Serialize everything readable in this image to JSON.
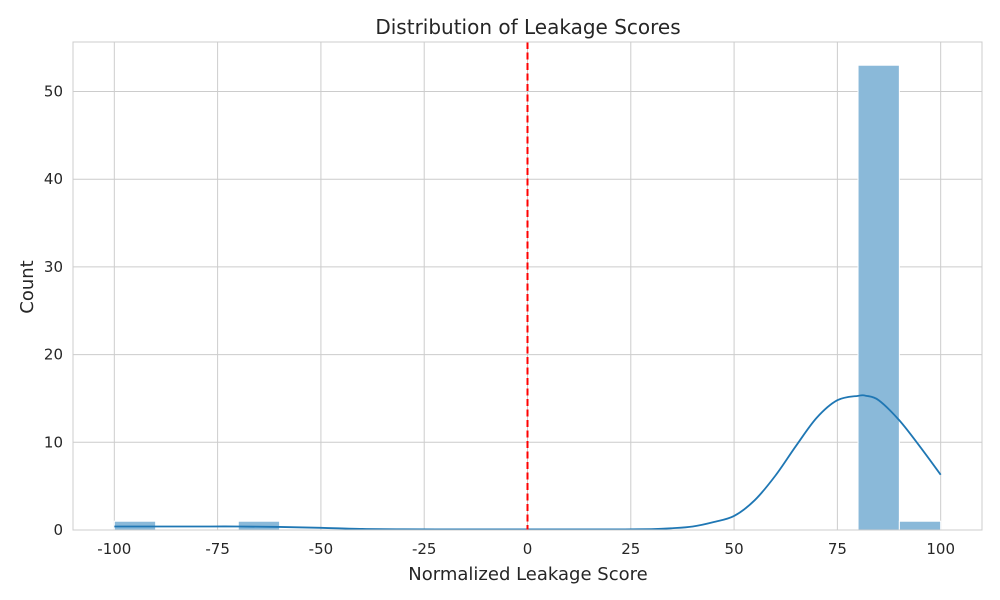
{
  "chart_data": {
    "type": "bar",
    "title": "Distribution of Leakage Scores",
    "xlabel": "Normalized Leakage Score",
    "ylabel": "Count",
    "xlim": [
      -110,
      110
    ],
    "ylim": [
      0,
      55.65
    ],
    "x_ticks": [
      -100,
      -75,
      -50,
      -25,
      0,
      25,
      50,
      75,
      100
    ],
    "x_tick_labels": [
      "-100",
      "-75",
      "-50",
      "-25",
      "0",
      "25",
      "50",
      "75",
      "100"
    ],
    "y_ticks": [
      0,
      10,
      20,
      30,
      40,
      50
    ],
    "y_tick_labels": [
      "0",
      "10",
      "20",
      "30",
      "40",
      "50"
    ],
    "grid": true,
    "bins": [
      {
        "x0": -100,
        "x1": -90,
        "count": 1
      },
      {
        "x0": -90,
        "x1": -80,
        "count": 0
      },
      {
        "x0": -80,
        "x1": -70,
        "count": 0
      },
      {
        "x0": -70,
        "x1": -60,
        "count": 1
      },
      {
        "x0": -60,
        "x1": -50,
        "count": 0
      },
      {
        "x0": -50,
        "x1": -40,
        "count": 0
      },
      {
        "x0": -40,
        "x1": -30,
        "count": 0
      },
      {
        "x0": -30,
        "x1": -20,
        "count": 0
      },
      {
        "x0": -20,
        "x1": -10,
        "count": 0
      },
      {
        "x0": -10,
        "x1": 0,
        "count": 0
      },
      {
        "x0": 0,
        "x1": 10,
        "count": 0
      },
      {
        "x0": 10,
        "x1": 20,
        "count": 0
      },
      {
        "x0": 20,
        "x1": 30,
        "count": 0
      },
      {
        "x0": 30,
        "x1": 40,
        "count": 0
      },
      {
        "x0": 40,
        "x1": 50,
        "count": 0
      },
      {
        "x0": 50,
        "x1": 60,
        "count": 0
      },
      {
        "x0": 60,
        "x1": 70,
        "count": 0
      },
      {
        "x0": 70,
        "x1": 80,
        "count": 0
      },
      {
        "x0": 80,
        "x1": 90,
        "count": 53
      },
      {
        "x0": 90,
        "x1": 100,
        "count": 1
      }
    ],
    "kde": {
      "x": [
        -100,
        -90,
        -80,
        -70,
        -60,
        -50,
        -40,
        -30,
        -20,
        -10,
        0,
        10,
        20,
        30,
        35,
        40,
        45,
        50,
        55,
        60,
        65,
        70,
        75,
        80,
        82,
        85,
        90,
        95,
        100
      ],
      "y": [
        0.4,
        0.4,
        0.4,
        0.4,
        0.35,
        0.25,
        0.12,
        0.08,
        0.07,
        0.07,
        0.07,
        0.07,
        0.07,
        0.1,
        0.2,
        0.4,
        0.9,
        1.6,
        3.4,
        6.2,
        9.6,
        12.8,
        14.8,
        15.3,
        15.3,
        14.8,
        12.5,
        9.5,
        6.3
      ]
    },
    "reference_line": {
      "x": 0,
      "color": "#ff0000",
      "style": "dashed"
    },
    "colors": {
      "bar_fill": "#8ab9d9",
      "bar_stroke": "#ffffff",
      "kde_line": "#1f77b4",
      "grid": "#cccccc",
      "axes_edge": "#cccccc"
    }
  }
}
